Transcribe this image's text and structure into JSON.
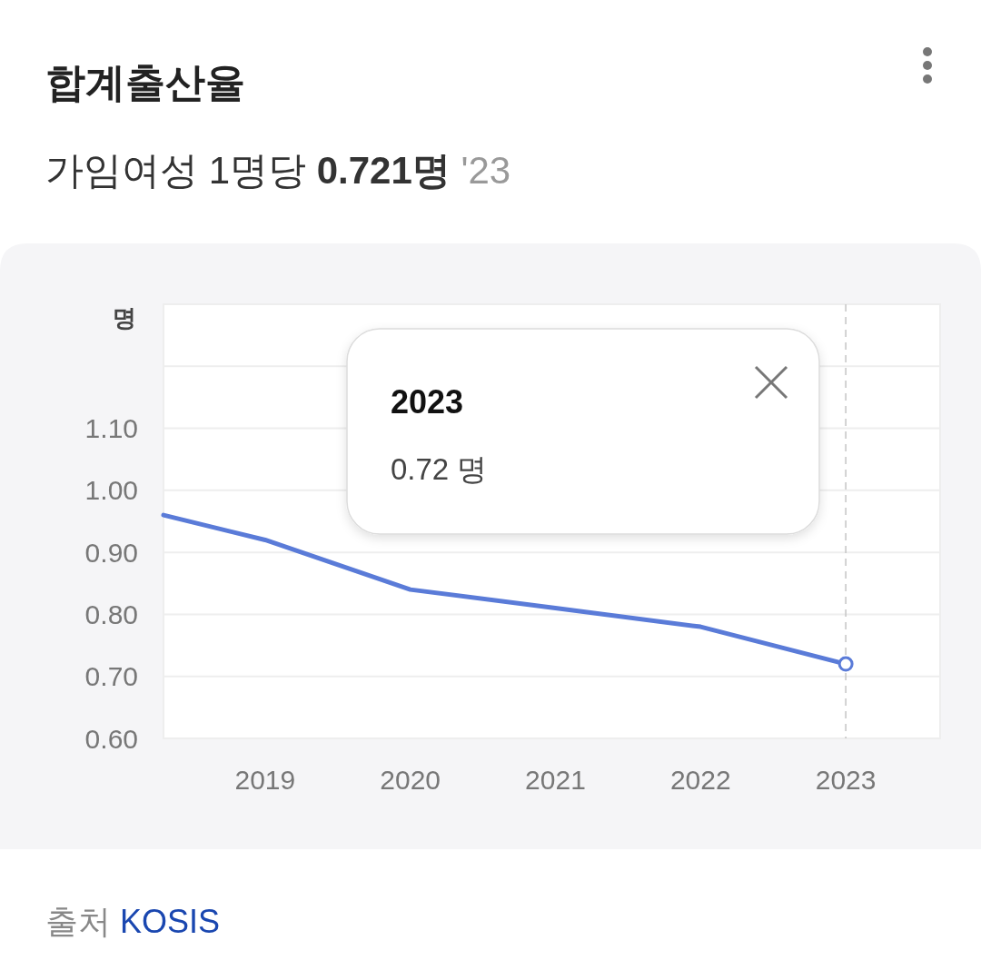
{
  "chart_data": {
    "type": "line",
    "title": "합계출산율",
    "subtitle": "가임여성 1명당 0.721명 '23",
    "ylabel": "명",
    "annotations": [
      "2023",
      "0.72 명",
      "출처 KOSIS"
    ],
    "x": [
      2018.3,
      2019,
      2020,
      2021,
      2022,
      2023
    ],
    "xlim": [
      2018.3,
      2023.65
    ],
    "xticks": [
      2019,
      2020,
      2021,
      2022,
      2023
    ],
    "ylim": [
      0.6,
      1.3
    ],
    "yticks": [
      {
        "value": 0.6,
        "label": "0.60"
      },
      {
        "value": 0.7,
        "label": "0.70"
      },
      {
        "value": 0.8,
        "label": "0.80"
      },
      {
        "value": 0.9,
        "label": "0.90"
      },
      {
        "value": 1.0,
        "label": "1.00"
      },
      {
        "value": 1.1,
        "label": "1.10"
      },
      {
        "value": 1.2,
        "label": null
      },
      {
        "value": 1.3,
        "label": null
      }
    ],
    "grid": "y",
    "series": [
      {
        "color": "#5a7bd8",
        "values": [
          0.96,
          0.92,
          0.84,
          0.81,
          0.78,
          0.72
        ]
      },
      {
        "type": "scatter",
        "x": [
          2023
        ],
        "values": [
          0.72
        ],
        "color": "#5a7bd8",
        "marker": "circle"
      }
    ],
    "ref_lines": [
      {
        "axis": "x",
        "value": 2023,
        "color": "#c8c8c8",
        "line_style": "dashed"
      }
    ]
  }
}
